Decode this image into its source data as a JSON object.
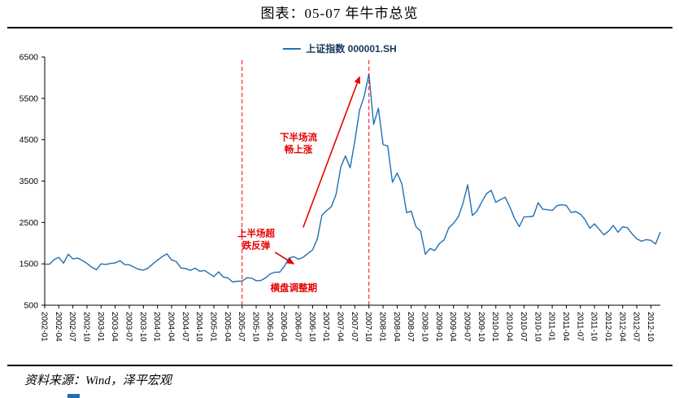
{
  "page": {
    "title": "图表：05-07 年牛市总览",
    "source": "资料来源：Wind，泽平宏观"
  },
  "legend": {
    "label": "上证指数 000001.SH"
  },
  "chart_data": {
    "type": "line",
    "title": "图表：05-07 年牛市总览",
    "grid": false,
    "legend_position": "top",
    "ylim": [
      500,
      6500
    ],
    "yticks": [
      500,
      1500,
      2500,
      3500,
      4500,
      5500,
      6500
    ],
    "x_tick_every": 3,
    "x": [
      "2002-01",
      "2002-02",
      "2002-03",
      "2002-04",
      "2002-05",
      "2002-06",
      "2002-07",
      "2002-08",
      "2002-09",
      "2002-10",
      "2002-11",
      "2002-12",
      "2003-01",
      "2003-02",
      "2003-03",
      "2003-04",
      "2003-05",
      "2003-06",
      "2003-07",
      "2003-08",
      "2003-09",
      "2003-10",
      "2003-11",
      "2003-12",
      "2004-01",
      "2004-02",
      "2004-03",
      "2004-04",
      "2004-05",
      "2004-06",
      "2004-07",
      "2004-08",
      "2004-09",
      "2004-10",
      "2004-11",
      "2004-12",
      "2005-01",
      "2005-02",
      "2005-03",
      "2005-04",
      "2005-05",
      "2005-06",
      "2005-07",
      "2005-08",
      "2005-09",
      "2005-10",
      "2005-11",
      "2005-12",
      "2006-01",
      "2006-02",
      "2006-03",
      "2006-04",
      "2006-05",
      "2006-06",
      "2006-07",
      "2006-08",
      "2006-09",
      "2006-10",
      "2006-11",
      "2006-12",
      "2007-01",
      "2007-02",
      "2007-03",
      "2007-04",
      "2007-05",
      "2007-06",
      "2007-07",
      "2007-08",
      "2007-09",
      "2007-10",
      "2007-11",
      "2007-12",
      "2008-01",
      "2008-02",
      "2008-03",
      "2008-04",
      "2008-05",
      "2008-06",
      "2008-07",
      "2008-08",
      "2008-09",
      "2008-10",
      "2008-11",
      "2008-12",
      "2009-01",
      "2009-02",
      "2009-03",
      "2009-04",
      "2009-05",
      "2009-06",
      "2009-07",
      "2009-08",
      "2009-09",
      "2009-10",
      "2009-11",
      "2009-12",
      "2010-01",
      "2010-02",
      "2010-03",
      "2010-04",
      "2010-05",
      "2010-06",
      "2010-07",
      "2010-08",
      "2010-09",
      "2010-10",
      "2010-11",
      "2010-12",
      "2011-01",
      "2011-02",
      "2011-03",
      "2011-04",
      "2011-05",
      "2011-06",
      "2011-07",
      "2011-08",
      "2011-09",
      "2011-10",
      "2011-11",
      "2011-12",
      "2012-01",
      "2012-02",
      "2012-03",
      "2012-04",
      "2012-05",
      "2012-06",
      "2012-07",
      "2012-08",
      "2012-09",
      "2012-10",
      "2012-11",
      "2012-12"
    ],
    "series": [
      {
        "name": "上证指数 000001.SH",
        "color": "#1f6fb5",
        "values": [
          1491,
          1492,
          1603,
          1657,
          1515,
          1732,
          1620,
          1639,
          1581,
          1510,
          1419,
          1357,
          1499,
          1485,
          1510,
          1521,
          1576,
          1486,
          1476,
          1421,
          1367,
          1348,
          1397,
          1497,
          1590,
          1675,
          1741,
          1595,
          1555,
          1399,
          1386,
          1342,
          1396,
          1320,
          1340,
          1266,
          1191,
          1306,
          1181,
          1159,
          1060,
          1081,
          1083,
          1162,
          1155,
          1092,
          1099,
          1161,
          1258,
          1299,
          1298,
          1440,
          1641,
          1672,
          1612,
          1658,
          1752,
          1837,
          2099,
          2675,
          2786,
          2881,
          3183,
          3841,
          4109,
          3820,
          4471,
          5218,
          5552,
          6092,
          4871,
          5261,
          4383,
          4348,
          3472,
          3693,
          3433,
          2736,
          2775,
          2397,
          2293,
          1729,
          1871,
          1820,
          1991,
          2082,
          2373,
          2478,
          2632,
          2959,
          3412,
          2668,
          2779,
          2995,
          3195,
          3277,
          2989,
          3051,
          3109,
          2870,
          2592,
          2398,
          2637,
          2638,
          2655,
          2978,
          2820,
          2808,
          2790,
          2905,
          2928,
          2911,
          2743,
          2762,
          2701,
          2567,
          2359,
          2468,
          2333,
          2199,
          2292,
          2428,
          2262,
          2396,
          2372,
          2225,
          2103,
          2047,
          2086,
          2068,
          1980,
          2269
        ]
      }
    ],
    "vlines": [
      {
        "x": "2005-07",
        "color": "#ff0000",
        "style": "dashed"
      },
      {
        "x": "2007-10",
        "color": "#ff0000",
        "style": "dashed"
      }
    ],
    "annotations": [
      {
        "lines": [
          "下半场流",
          "畅上涨"
        ],
        "x": "2006-07",
        "y": 4480,
        "color": "#e60000"
      },
      {
        "lines": [
          "上半场超",
          "跌反弹"
        ],
        "x": "2005-10",
        "y": 2160,
        "color": "#e60000"
      },
      {
        "lines": [
          "横盘调整期"
        ],
        "x": "2006-06",
        "y": 840,
        "color": "#e60000"
      }
    ],
    "arrows": [
      {
        "from": {
          "x": "2006-08",
          "y": 2380
        },
        "to": {
          "x": "2007-08",
          "y": 6020
        },
        "color": "#e60000"
      },
      {
        "from": {
          "x": "2006-02",
          "y": 1780
        },
        "to": {
          "x": "2006-06",
          "y": 1500
        },
        "color": "#e60000"
      }
    ]
  }
}
